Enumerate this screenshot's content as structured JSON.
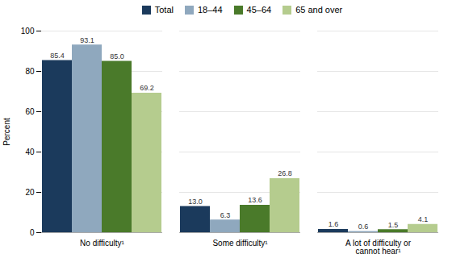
{
  "chart_data": {
    "type": "bar",
    "categories": [
      "No difficulty¹",
      "Some difficulty¹",
      "A lot of difficulty or\ncannot hear¹"
    ],
    "series": [
      {
        "name": "Total",
        "color": "#1b3a5c",
        "values": [
          85.4,
          13.0,
          1.6
        ],
        "value_labels": [
          "85.4",
          "13.0",
          "1.6"
        ]
      },
      {
        "name": "18–44",
        "color": "#8fa8be",
        "values": [
          93.1,
          6.3,
          0.6
        ],
        "value_labels": [
          "93.1",
          "6.3",
          "0.6"
        ]
      },
      {
        "name": "45–64",
        "color": "#4a7a2a",
        "values": [
          85.0,
          13.6,
          1.5
        ],
        "value_labels": [
          "85.0",
          "13.6",
          "1.5"
        ]
      },
      {
        "name": "65 and over",
        "color": "#b5cc8e",
        "values": [
          69.2,
          26.8,
          4.1
        ],
        "value_labels": [
          "69.2",
          "26.8",
          "4.1"
        ]
      }
    ],
    "ylabel": "Percent",
    "ylim": [
      0,
      100
    ],
    "yticks": [
      0,
      20,
      40,
      60,
      80,
      100
    ],
    "grid": true,
    "legend": "top",
    "data_labels": true
  }
}
